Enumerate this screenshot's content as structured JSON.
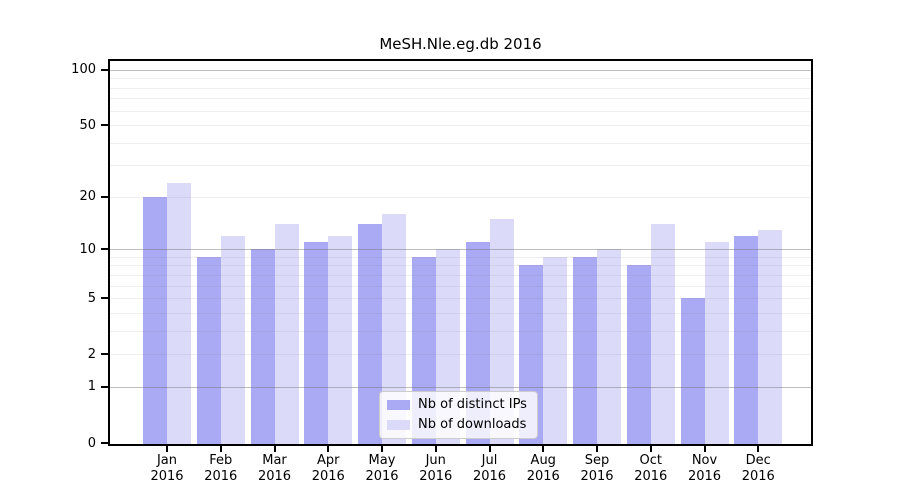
{
  "chart_data": {
    "type": "bar",
    "title": "MeSH.Nle.eg.db 2016",
    "categories": [
      "Jan",
      "Feb",
      "Mar",
      "Apr",
      "May",
      "Jun",
      "Jul",
      "Aug",
      "Sep",
      "Oct",
      "Nov",
      "Dec"
    ],
    "year_label": "2016",
    "series": [
      {
        "name": "Nb of distinct IPs",
        "color": "#a9a9f4",
        "values": [
          20,
          9,
          10,
          11,
          14,
          9,
          11,
          8,
          9,
          8,
          5,
          12
        ]
      },
      {
        "name": "Nb of downloads",
        "color": "#dbdbf9",
        "values": [
          24,
          12,
          14,
          12,
          16,
          10,
          15,
          9,
          10,
          14,
          11,
          13
        ]
      }
    ],
    "yscale": "log1p",
    "yticks": [
      0,
      1,
      2,
      5,
      10,
      20,
      50,
      100
    ],
    "ylim": [
      0,
      112
    ],
    "grid": {
      "on": true,
      "major_at": [
        1,
        10,
        100
      ],
      "minor_at": [
        2,
        3,
        4,
        5,
        6,
        7,
        8,
        9,
        20,
        30,
        40,
        50,
        60,
        70,
        80,
        90
      ]
    },
    "legend_position": "bottom-center"
  }
}
